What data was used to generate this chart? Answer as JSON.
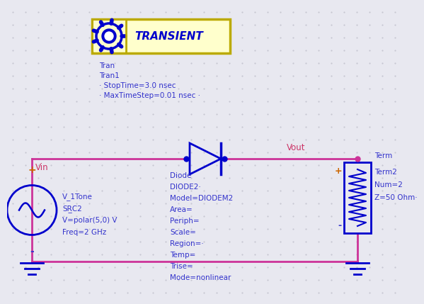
{
  "bg_color": "#e8e8f0",
  "dot_color": "#c0c0cc",
  "wire_color": "#cc3399",
  "component_color": "#0000cc",
  "label_color_blue": "#3333cc",
  "label_color_red": "#cc3366",
  "label_color_orange": "#cc6600",
  "transient_text": "TRANSIENT",
  "tran_labels": [
    "Tran",
    "Tran1",
    "· StopTime=3.0 nsec",
    "· MaxTimeStep=0.01 nsec ·"
  ],
  "vin_label": "Vin",
  "vout_label": "Vout",
  "src_labels": [
    "V_1Tone",
    "SR̲C2",
    "V=polar(5,0) V",
    "Freq=2 GHz"
  ],
  "diode_labels": [
    "Diode",
    "DIODE2·",
    "Model=DIODEM2",
    "Area=",
    "Periph=",
    "Scale=",
    "Region=·",
    "Temp=",
    "Trise=",
    "Mode=nonlinear"
  ],
  "term_labels": [
    "Term",
    "Term2",
    "Num=2",
    "Z=50 Ohm·"
  ]
}
